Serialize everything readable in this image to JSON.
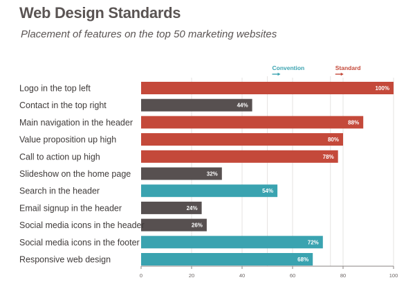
{
  "header": {
    "title": "Web Design Standards",
    "subtitle": "Placement of features on the top 50 marketing websites"
  },
  "colors": {
    "standard": "#c4493a",
    "convention": "#3aa3b0",
    "other": "#575050",
    "axis": "#8a8382",
    "grid": "#e6e3e2"
  },
  "chart_data": {
    "type": "bar",
    "orientation": "horizontal",
    "title": "Web Design Standards",
    "subtitle": "Placement of features on the top 50 marketing websites",
    "xlabel": "",
    "ylabel": "",
    "xlim": [
      0,
      100
    ],
    "xticks": [
      0,
      20,
      40,
      60,
      80,
      100
    ],
    "grid": true,
    "categories": [
      "Logo in the top left",
      "Contact in the top right",
      "Main navigation in the header",
      "Value proposition up high",
      "Call to action up high",
      "Slideshow on the home page",
      "Search in the header",
      "Email signup in the header",
      "Social media icons in the header",
      "Social media icons in the footer",
      "Responsive web design"
    ],
    "values": [
      100,
      44,
      88,
      80,
      78,
      32,
      54,
      24,
      26,
      72,
      68
    ],
    "value_labels": [
      "100%",
      "44%",
      "88%",
      "80%",
      "78%",
      "32%",
      "54%",
      "24%",
      "26%",
      "72%",
      "68%"
    ],
    "bar_groups": [
      "standard",
      "other",
      "standard",
      "standard",
      "standard",
      "other",
      "convention",
      "other",
      "other",
      "convention",
      "convention"
    ],
    "reference_lines": [
      {
        "label": "Convention",
        "value": 50,
        "color": "#3aa3b0"
      },
      {
        "label": "Standard",
        "value": 75,
        "color": "#c4493a"
      }
    ]
  }
}
